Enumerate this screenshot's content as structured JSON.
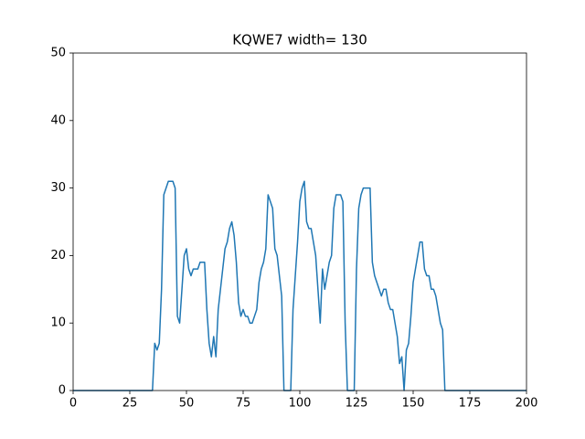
{
  "chart_data": {
    "type": "line",
    "title": "KQWE7 width= 130",
    "color": "#1f77b4",
    "x": [
      0,
      35,
      36,
      37,
      38,
      39,
      40,
      41,
      42,
      43,
      44,
      45,
      46,
      47,
      48,
      49,
      50,
      51,
      52,
      53,
      54,
      55,
      56,
      57,
      58,
      59,
      60,
      61,
      62,
      63,
      64,
      65,
      66,
      67,
      68,
      69,
      70,
      71,
      72,
      73,
      74,
      75,
      76,
      77,
      78,
      79,
      80,
      81,
      82,
      83,
      84,
      85,
      86,
      87,
      88,
      89,
      90,
      91,
      92,
      93,
      94,
      95,
      96,
      97,
      98,
      99,
      100,
      101,
      102,
      103,
      104,
      105,
      106,
      107,
      108,
      109,
      110,
      111,
      112,
      113,
      114,
      115,
      116,
      117,
      118,
      119,
      120,
      121,
      122,
      123,
      124,
      125,
      126,
      127,
      128,
      129,
      130,
      131,
      132,
      133,
      134,
      135,
      136,
      137,
      138,
      139,
      140,
      141,
      142,
      143,
      144,
      145,
      146,
      147,
      148,
      149,
      150,
      151,
      152,
      153,
      154,
      155,
      156,
      157,
      158,
      159,
      160,
      161,
      162,
      163,
      164,
      165,
      200
    ],
    "values": [
      0,
      0,
      7,
      6,
      7,
      15,
      29,
      30,
      31,
      31,
      31,
      30,
      11,
      10,
      15,
      20,
      21,
      18,
      17,
      18,
      18,
      18,
      19,
      19,
      19,
      12,
      7,
      5,
      8,
      5,
      12,
      15,
      18,
      21,
      22,
      24,
      25,
      23,
      19,
      13,
      11,
      12,
      11,
      11,
      10,
      10,
      11,
      12,
      16,
      18,
      19,
      21,
      29,
      28,
      27,
      21,
      20,
      17,
      14,
      0,
      0,
      0,
      0,
      12,
      17,
      22,
      28,
      30,
      31,
      25,
      24,
      24,
      22,
      20,
      15,
      10,
      18,
      15,
      17,
      19,
      20,
      27,
      29,
      29,
      29,
      28,
      10,
      0,
      0,
      0,
      0,
      18,
      27,
      29,
      30,
      30,
      30,
      30,
      19,
      17,
      16,
      15,
      14,
      15,
      15,
      13,
      12,
      12,
      10,
      8,
      4,
      5,
      0,
      6,
      7,
      11,
      16,
      18,
      20,
      22,
      22,
      18,
      17,
      17,
      15,
      15,
      14,
      12,
      10,
      9,
      0,
      0,
      0
    ],
    "xlim": [
      0,
      200
    ],
    "xticks": [
      0,
      25,
      50,
      75,
      100,
      125,
      150,
      175,
      200
    ],
    "ylim": [
      0,
      50
    ],
    "yticks": [
      0,
      10,
      20,
      30,
      40,
      50
    ]
  }
}
